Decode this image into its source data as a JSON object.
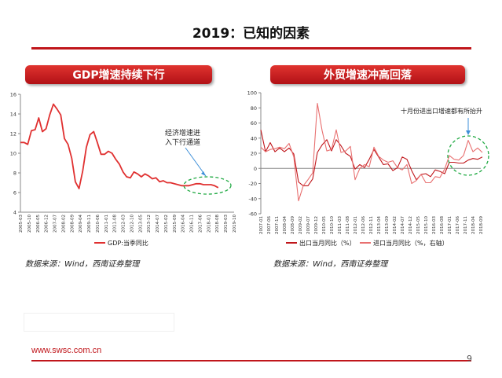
{
  "slide": {
    "title": "2019：已知的因素",
    "website": "www.swsc.com.cn",
    "page_number": "9",
    "accent_color": "#c0161b"
  },
  "left_panel": {
    "header": "GDP增速持续下行",
    "source": "数据来源：Wind，西南证券整理",
    "annotation": [
      "经济增速进",
      "入下行通道"
    ],
    "highlight_color": "#22aa44"
  },
  "right_panel": {
    "header": "外贸增速冲高回落",
    "source": "数据来源：Wind，西南证券整理",
    "annotation": "十月份进出口增速都有所抬升",
    "highlight_color": "#22aa44"
  },
  "chart_data": [
    {
      "type": "line",
      "title": "",
      "xlabel": "",
      "ylabel": "",
      "ylim": [
        4,
        16
      ],
      "yticks": [
        4,
        6,
        8,
        10,
        12,
        14,
        16
      ],
      "x_tick_labels": [
        "2005-03",
        "2005-10",
        "2006-05",
        "2006-12",
        "2007-07",
        "2008-02",
        "2008-09",
        "2009-04",
        "2009-11",
        "2010-06",
        "2011-01",
        "2011-08",
        "2012-03",
        "2012-10",
        "2013-05",
        "2013-12",
        "2014-07",
        "2015-02",
        "2015-09",
        "2016-04",
        "2016-11",
        "2017-06",
        "2018-01",
        "2018-08",
        "2019-03",
        "2019-10"
      ],
      "legend_position": "bottom",
      "grid": false,
      "series": [
        {
          "name": "GDP:当季同比",
          "color": "#e03030",
          "x": [
            "2005-03",
            "2005-06",
            "2005-09",
            "2005-12",
            "2006-03",
            "2006-06",
            "2006-09",
            "2006-12",
            "2007-03",
            "2007-06",
            "2007-09",
            "2007-12",
            "2008-03",
            "2008-06",
            "2008-09",
            "2008-12",
            "2009-03",
            "2009-06",
            "2009-09",
            "2009-12",
            "2010-03",
            "2010-06",
            "2010-09",
            "2010-12",
            "2011-03",
            "2011-06",
            "2011-09",
            "2011-12",
            "2012-03",
            "2012-06",
            "2012-09",
            "2012-12",
            "2013-03",
            "2013-06",
            "2013-09",
            "2013-12",
            "2014-03",
            "2014-06",
            "2014-09",
            "2014-12",
            "2015-03",
            "2015-06",
            "2015-09",
            "2015-12",
            "2016-03",
            "2016-06",
            "2016-09",
            "2016-12",
            "2017-03",
            "2017-06",
            "2017-09",
            "2017-12",
            "2018-03",
            "2018-06",
            "2018-09"
          ],
          "values": [
            11.1,
            11.1,
            10.9,
            12.3,
            12.4,
            13.6,
            12.2,
            12.5,
            13.9,
            15.0,
            14.5,
            13.9,
            11.5,
            10.9,
            9.5,
            7.1,
            6.4,
            8.2,
            10.6,
            11.9,
            12.2,
            11.1,
            9.9,
            9.9,
            10.2,
            10.0,
            9.4,
            8.9,
            8.1,
            7.6,
            7.5,
            8.1,
            7.9,
            7.6,
            7.9,
            7.7,
            7.4,
            7.5,
            7.1,
            7.2,
            7.0,
            7.0,
            6.9,
            6.8,
            6.7,
            6.7,
            6.7,
            6.8,
            6.9,
            6.9,
            6.8,
            6.8,
            6.8,
            6.7,
            6.5
          ]
        }
      ]
    },
    {
      "type": "line",
      "title": "",
      "xlabel": "",
      "ylabel": "",
      "ylim": [
        -60,
        100
      ],
      "yticks": [
        -60,
        -40,
        -20,
        0,
        20,
        40,
        60,
        80,
        100
      ],
      "x_tick_labels": [
        "2007-01",
        "2007-06",
        "2007-11",
        "2008-04",
        "2008-09",
        "2009-02",
        "2009-07",
        "2009-12",
        "2010-05",
        "2010-10",
        "2011-03",
        "2011-08",
        "2012-01",
        "2012-06",
        "2012-11",
        "2013-04",
        "2013-09",
        "2014-02",
        "2014-07",
        "2014-12",
        "2015-05",
        "2015-10",
        "2016-03",
        "2016-08",
        "2017-01",
        "2017-06",
        "2017-11",
        "2018-04",
        "2018-09"
      ],
      "legend_position": "bottom",
      "grid": false,
      "series": [
        {
          "name": "出口当月同比（%）",
          "color": "#c0161b",
          "x": [
            "2007-01",
            "2007-04",
            "2007-07",
            "2007-10",
            "2008-01",
            "2008-04",
            "2008-07",
            "2008-10",
            "2009-01",
            "2009-04",
            "2009-07",
            "2009-10",
            "2010-01",
            "2010-04",
            "2010-07",
            "2010-10",
            "2011-01",
            "2011-04",
            "2011-07",
            "2011-10",
            "2012-01",
            "2012-04",
            "2012-07",
            "2012-10",
            "2013-01",
            "2013-04",
            "2013-07",
            "2013-10",
            "2014-01",
            "2014-04",
            "2014-07",
            "2014-10",
            "2015-01",
            "2015-04",
            "2015-07",
            "2015-10",
            "2016-01",
            "2016-04",
            "2016-07",
            "2016-10",
            "2017-01",
            "2017-04",
            "2017-07",
            "2017-10",
            "2018-01",
            "2018-04",
            "2018-07",
            "2018-10"
          ],
          "values": [
            51,
            22,
            34,
            22,
            27,
            22,
            27,
            19,
            -18,
            -23,
            -23,
            -14,
            21,
            31,
            38,
            23,
            38,
            30,
            20,
            16,
            -1,
            5,
            1,
            12,
            25,
            15,
            5,
            6,
            -3,
            1,
            15,
            12,
            -3,
            -15,
            -8,
            -7,
            -11,
            -2,
            -4,
            -7,
            8,
            8,
            7,
            7,
            11,
            13,
            12,
            15
          ]
        },
        {
          "name": "进口当月同比（%，右轴）",
          "color": "#e87070",
          "x": [
            "2007-01",
            "2007-04",
            "2007-07",
            "2007-10",
            "2008-01",
            "2008-04",
            "2008-07",
            "2008-10",
            "2009-01",
            "2009-04",
            "2009-07",
            "2009-10",
            "2010-01",
            "2010-04",
            "2010-07",
            "2010-10",
            "2011-01",
            "2011-04",
            "2011-07",
            "2011-10",
            "2012-01",
            "2012-04",
            "2012-07",
            "2012-10",
            "2013-01",
            "2013-04",
            "2013-07",
            "2013-10",
            "2014-01",
            "2014-04",
            "2014-07",
            "2014-10",
            "2015-01",
            "2015-04",
            "2015-07",
            "2015-10",
            "2016-01",
            "2016-04",
            "2016-07",
            "2016-10",
            "2017-01",
            "2017-04",
            "2017-07",
            "2017-10",
            "2018-01",
            "2018-04",
            "2018-07",
            "2018-10"
          ],
          "values": [
            28,
            22,
            25,
            26,
            28,
            26,
            33,
            15,
            -43,
            -23,
            -15,
            -6,
            86,
            50,
            23,
            25,
            51,
            21,
            23,
            29,
            -15,
            0,
            5,
            2,
            28,
            16,
            11,
            8,
            10,
            1,
            -2,
            5,
            -20,
            -16,
            -8,
            -19,
            -19,
            -11,
            -12,
            -1,
            17,
            12,
            11,
            17,
            37,
            22,
            27,
            21
          ]
        }
      ]
    }
  ]
}
